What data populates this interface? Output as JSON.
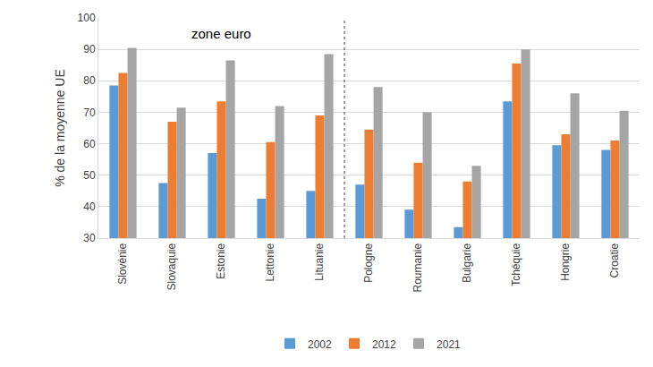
{
  "chart_data": {
    "type": "bar",
    "y_label": "% de la moyenne UE",
    "categories": [
      "Slovénie",
      "Slovaquie",
      "Estonie",
      "Lettonie",
      "Lituanie",
      "Pologne",
      "Roumanie",
      "Bulgarie",
      "Tchéquie",
      "Hongrie",
      "Croatie"
    ],
    "series": [
      {
        "name": "2002",
        "color": "#5b9bd5",
        "values": [
          78.5,
          47.5,
          57,
          42.5,
          45,
          47,
          39,
          33.5,
          73.5,
          59.5,
          58
        ]
      },
      {
        "name": "2012",
        "color": "#ed7d31",
        "values": [
          82.5,
          67,
          73.5,
          60.5,
          69,
          64.5,
          54,
          48,
          85.5,
          63,
          61
        ]
      },
      {
        "name": "2021",
        "color": "#a5a5a5",
        "values": [
          90.5,
          71.5,
          86.5,
          72,
          88.5,
          78,
          70,
          53,
          90,
          76,
          70.5
        ]
      }
    ],
    "annotations": [
      {
        "text": "zone euro"
      }
    ],
    "ylim": [
      30,
      100
    ],
    "yticks": [
      30,
      40,
      50,
      60,
      70,
      80,
      90,
      100
    ],
    "grid": true,
    "legend": "bottom"
  }
}
